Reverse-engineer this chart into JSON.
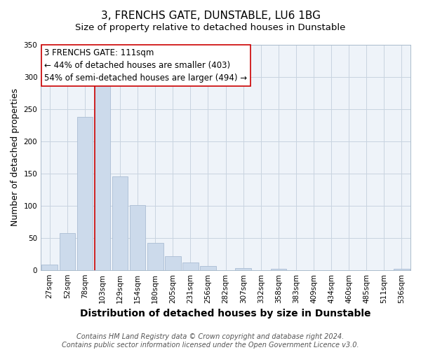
{
  "title": "3, FRENCHS GATE, DUNSTABLE, LU6 1BG",
  "subtitle": "Size of property relative to detached houses in Dunstable",
  "xlabel": "Distribution of detached houses by size in Dunstable",
  "ylabel": "Number of detached properties",
  "bar_labels": [
    "27sqm",
    "52sqm",
    "78sqm",
    "103sqm",
    "129sqm",
    "154sqm",
    "180sqm",
    "205sqm",
    "231sqm",
    "256sqm",
    "282sqm",
    "307sqm",
    "332sqm",
    "358sqm",
    "383sqm",
    "409sqm",
    "434sqm",
    "460sqm",
    "485sqm",
    "511sqm",
    "536sqm"
  ],
  "bar_values": [
    8,
    57,
    238,
    291,
    145,
    101,
    42,
    21,
    12,
    6,
    0,
    3,
    0,
    2,
    0,
    0,
    0,
    0,
    0,
    0,
    2
  ],
  "bar_color": "#ccdaeb",
  "bar_edge_color": "#aabdd4",
  "vline_bar_index": 3,
  "vline_color": "#cc0000",
  "annotation_title": "3 FRENCHS GATE: 111sqm",
  "annotation_line1": "← 44% of detached houses are smaller (403)",
  "annotation_line2": "54% of semi-detached houses are larger (494) →",
  "annotation_box_color": "#ffffff",
  "annotation_box_edge": "#cc0000",
  "plot_bg_color": "#eef3f9",
  "grid_color": "#c8d4e0",
  "ylim": [
    0,
    350
  ],
  "yticks": [
    0,
    50,
    100,
    150,
    200,
    250,
    300,
    350
  ],
  "footer1": "Contains HM Land Registry data © Crown copyright and database right 2024.",
  "footer2": "Contains public sector information licensed under the Open Government Licence v3.0.",
  "title_fontsize": 11,
  "subtitle_fontsize": 9.5,
  "xlabel_fontsize": 10,
  "ylabel_fontsize": 9,
  "tick_fontsize": 7.5,
  "footer_fontsize": 7,
  "annot_fontsize": 8.5
}
